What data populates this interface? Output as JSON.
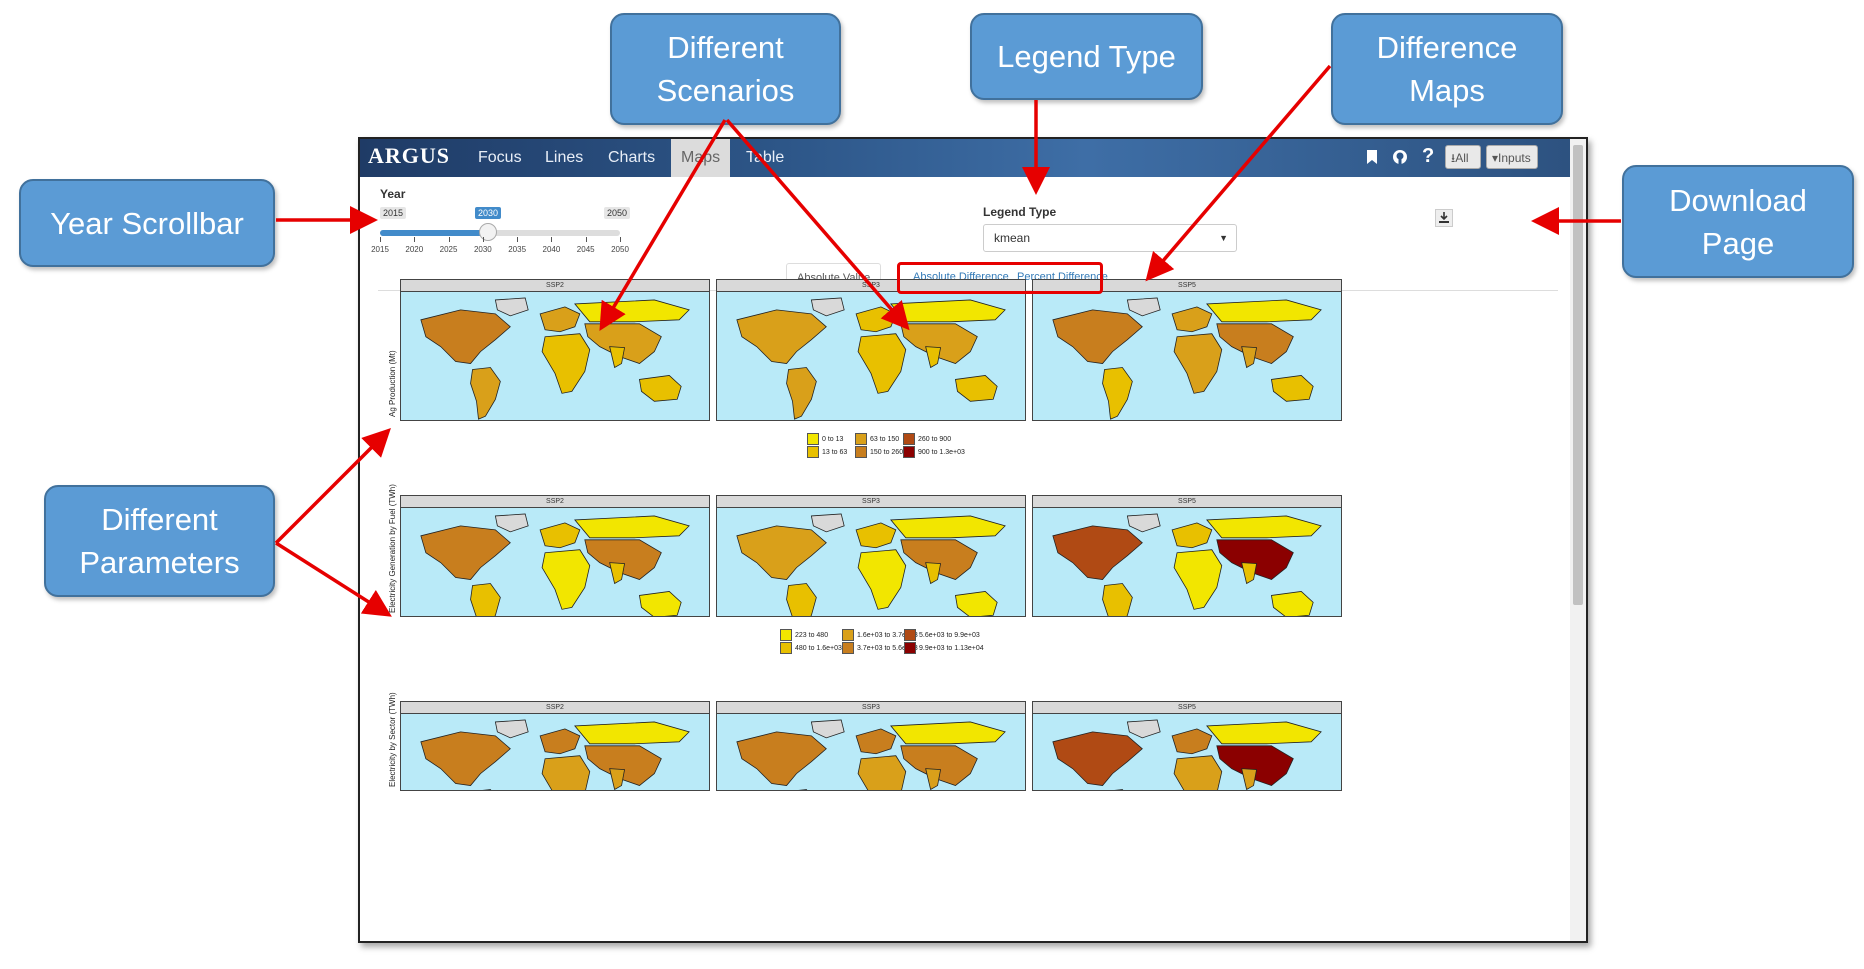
{
  "callouts": {
    "different_scenarios": "Different\nScenarios",
    "legend_type": "Legend Type",
    "difference_maps": "Difference\nMaps",
    "year_scrollbar": "Year Scrollbar",
    "download_page": "Download\nPage",
    "different_parameters": "Different\nParameters"
  },
  "navbar": {
    "brand": "ARGUS",
    "tabs": [
      "Focus",
      "Lines",
      "Charts",
      "Maps",
      "Table"
    ],
    "active_tab": "Maps",
    "all_button": "All",
    "inputs_button": "Inputs"
  },
  "year": {
    "label": "Year",
    "min": "2015",
    "max": "2050",
    "value": "2030",
    "ticks": [
      "2015",
      "2020",
      "2025",
      "2030",
      "2035",
      "2040",
      "2045",
      "2050"
    ]
  },
  "legend_type": {
    "label": "Legend Type",
    "value": "kmean"
  },
  "tabs": [
    "Absolute Value",
    "Absolute Difference",
    "Percent Difference"
  ],
  "active_view_tab": "Absolute Value",
  "scenarios": [
    "SSP2",
    "SSP3",
    "SSP5"
  ],
  "parameters": [
    {
      "name": "Ag Production (Mt)",
      "legend": [
        "0 to 13",
        "13 to 63",
        "63 to 150",
        "150 to 260",
        "260 to 900",
        "900 to 1.3e+03"
      ]
    },
    {
      "name": "Electricity Generation by Fuel (TWh)",
      "legend": [
        "223 to 480",
        "480 to 1.6e+03",
        "1.6e+03 to 3.7e+03",
        "3.7e+03 to 5.6e+03",
        "5.6e+03 to 9.9e+03",
        "9.9e+03 to 1.13e+04"
      ]
    },
    {
      "name": "Electricity by Sector (TWh)",
      "legend": []
    }
  ],
  "colors": {
    "callout": "#5b9bd5",
    "arrow": "#e60000",
    "ocean": "#b9eaf8",
    "no_data": "#d9d9d9",
    "scale": [
      "#f2e600",
      "#e8c000",
      "#d9a01a",
      "#c87e1e",
      "#b04a14",
      "#8b0000"
    ]
  }
}
